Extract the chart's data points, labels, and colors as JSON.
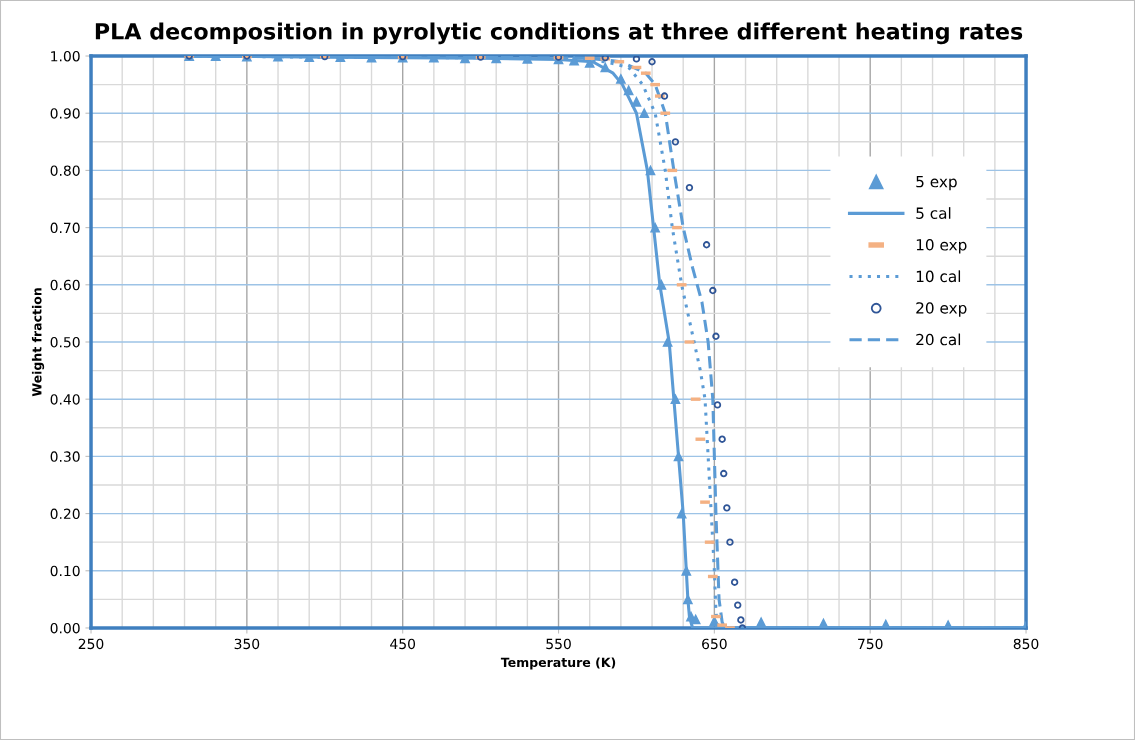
{
  "chart_data": {
    "type": "line",
    "title": "PLA decomposition in pyrolytic conditions at three different heating rates",
    "xlabel": "Temperature (K)",
    "ylabel": "Weight fraction",
    "xlim": [
      250,
      850
    ],
    "xticks": [
      250,
      350,
      450,
      550,
      650,
      750,
      850
    ],
    "ylim": [
      0,
      1
    ],
    "yticks": [
      {
        "value": 0,
        "label": "0.00"
      },
      {
        "value": 0.1,
        "label": "0.10"
      },
      {
        "value": 0.2,
        "label": "0.20"
      },
      {
        "value": 0.3,
        "label": "0.30"
      },
      {
        "value": 0.4,
        "label": "0.40"
      },
      {
        "value": 0.5,
        "label": "0.50"
      },
      {
        "value": 0.6,
        "label": "0.60"
      },
      {
        "value": 0.7,
        "label": "0.70"
      },
      {
        "value": 0.8,
        "label": "0.80"
      },
      {
        "value": 0.9,
        "label": "0.90"
      },
      {
        "value": 1,
        "label": "1.00"
      }
    ],
    "grid": true,
    "legend": "right",
    "series": [
      {
        "name": "5 exp",
        "type": "scatter",
        "marker": "triangle",
        "color": "#5b9bd5",
        "x": [
          313,
          330,
          350,
          370,
          390,
          410,
          430,
          450,
          470,
          490,
          510,
          530,
          550,
          560,
          570,
          580,
          590,
          595,
          600,
          605,
          609,
          612,
          616,
          620,
          625,
          627,
          629,
          632,
          633,
          635,
          638,
          650,
          680,
          720,
          760,
          800,
          850
        ],
        "values": [
          1.0,
          1.0,
          0.999,
          0.999,
          0.998,
          0.998,
          0.997,
          0.997,
          0.997,
          0.996,
          0.996,
          0.995,
          0.994,
          0.992,
          0.988,
          0.98,
          0.96,
          0.94,
          0.92,
          0.9,
          0.8,
          0.7,
          0.6,
          0.5,
          0.4,
          0.3,
          0.2,
          0.1,
          0.05,
          0.02,
          0.015,
          0.012,
          0.01,
          0.008,
          0.006,
          0.005,
          0.003
        ]
      },
      {
        "name": "5 cal",
        "line_style": "solid",
        "color": "#5b9bd5",
        "x": [
          313,
          400,
          500,
          550,
          572,
          585,
          591,
          600,
          607,
          611,
          615,
          621,
          624,
          627,
          630,
          633,
          634,
          636,
          850
        ],
        "values": [
          1.0,
          0.998,
          0.996,
          0.994,
          0.99,
          0.97,
          0.95,
          0.9,
          0.8,
          0.7,
          0.6,
          0.5,
          0.4,
          0.3,
          0.2,
          0.05,
          0.02,
          0,
          0
        ]
      },
      {
        "name": "10 exp",
        "type": "scatter",
        "color": "#f4b183",
        "x": [
          313,
          350,
          400,
          450,
          500,
          550,
          570,
          580,
          589,
          600,
          606,
          612,
          615,
          618.5,
          623,
          626,
          629,
          634,
          638,
          641,
          644,
          647,
          649,
          651,
          655,
          660
        ],
        "values": [
          1.0,
          0.999,
          0.999,
          0.998,
          0.998,
          0.997,
          0.996,
          0.995,
          0.99,
          0.98,
          0.97,
          0.95,
          0.93,
          0.9,
          0.8,
          0.7,
          0.6,
          0.5,
          0.4,
          0.33,
          0.22,
          0.15,
          0.09,
          0.02,
          0.005,
          0
        ]
      },
      {
        "name": "10 cal",
        "line_style": "dotted",
        "color": "#5b9bd5",
        "x": [
          313,
          400,
          500,
          560,
          580,
          595,
          604,
          612,
          618.5,
          623,
          629,
          633,
          637,
          641,
          644,
          646,
          648,
          650,
          651,
          652,
          850
        ],
        "values": [
          1.0,
          0.998,
          0.997,
          0.995,
          0.99,
          0.98,
          0.95,
          0.9,
          0.8,
          0.7,
          0.6,
          0.55,
          0.5,
          0.45,
          0.4,
          0.3,
          0.2,
          0.1,
          0.03,
          0,
          0
        ]
      },
      {
        "name": "20 exp",
        "type": "scatter",
        "marker": "circle",
        "color": "#2f5597",
        "x": [
          313,
          350,
          400,
          450,
          500,
          550,
          580,
          600,
          610,
          618,
          625,
          634,
          645,
          649,
          651,
          652,
          655,
          656,
          658,
          660,
          663,
          665,
          667,
          668
        ],
        "values": [
          1.0,
          1.0,
          0.999,
          0.999,
          0.998,
          0.998,
          0.997,
          0.995,
          0.99,
          0.93,
          0.85,
          0.77,
          0.67,
          0.59,
          0.51,
          0.39,
          0.33,
          0.27,
          0.21,
          0.15,
          0.08,
          0.04,
          0.014,
          0.0
        ]
      },
      {
        "name": "20 cal",
        "line_style": "dashed",
        "color": "#5b9bd5",
        "x": [
          313,
          400,
          500,
          570,
          590,
          606,
          612,
          618.5,
          624,
          630,
          636,
          642,
          646,
          649,
          651,
          653,
          655,
          657,
          850
        ],
        "values": [
          1.0,
          0.999,
          0.998,
          0.996,
          0.99,
          0.97,
          0.95,
          0.9,
          0.8,
          0.7,
          0.63,
          0.57,
          0.5,
          0.4,
          0.2,
          0.05,
          0.01,
          0,
          0
        ]
      }
    ]
  }
}
